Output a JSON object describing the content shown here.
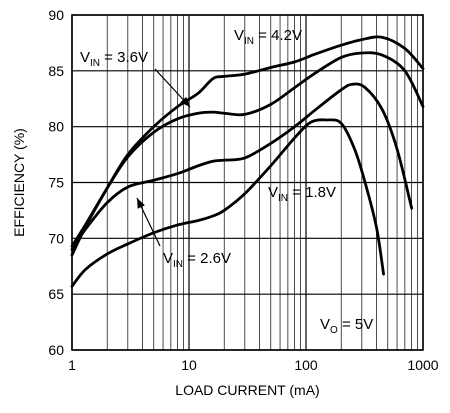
{
  "chart_data": {
    "type": "line",
    "xlabel": "LOAD CURRENT (mA)",
    "ylabel": "EFFICIENCY (%)",
    "x_scale": "log",
    "xlim": [
      1,
      1000
    ],
    "ylim": [
      60,
      90
    ],
    "x_ticks": [
      1,
      10,
      100,
      1000
    ],
    "x_tick_labels": [
      "1",
      "10",
      "100",
      "1000"
    ],
    "y_ticks": [
      60,
      65,
      70,
      75,
      80,
      85,
      90
    ],
    "y_tick_labels": [
      "60",
      "65",
      "70",
      "75",
      "80",
      "85",
      "90"
    ],
    "grid": true,
    "series": [
      {
        "name": "VIN = 4.2V",
        "label_main": "V",
        "label_sub": "IN",
        "label_tail": " = 4.2V",
        "x": [
          1,
          1.3,
          2,
          3,
          5,
          8,
          12,
          16,
          20,
          30,
          50,
          80,
          120,
          200,
          300,
          450,
          700,
          1000
        ],
        "y": [
          68.5,
          71,
          74.5,
          77.5,
          80,
          81.8,
          83,
          84.3,
          84.5,
          84.7,
          85.3,
          85.8,
          86.5,
          87.3,
          87.8,
          88,
          87,
          85.2
        ]
      },
      {
        "name": "VIN = 3.6V",
        "label_main": "V",
        "label_sub": "IN",
        "label_tail": " = 3.6V",
        "x": [
          1,
          1.3,
          2,
          3,
          5,
          8,
          12,
          16,
          20,
          30,
          50,
          80,
          120,
          200,
          300,
          450,
          700,
          1000
        ],
        "y": [
          69.3,
          71.2,
          74.5,
          77.3,
          79.5,
          80.7,
          81.2,
          81.3,
          81.2,
          81.1,
          82,
          83.5,
          84.8,
          86.2,
          86.6,
          86.4,
          85,
          81.8
        ]
      },
      {
        "name": "VIN = 1.8V",
        "label_main": "V",
        "label_sub": "IN",
        "label_tail": " = 1.8V",
        "x": [
          1,
          1.3,
          2,
          3,
          5,
          8,
          12,
          16,
          20,
          30,
          50,
          80,
          120,
          200,
          250,
          320,
          450,
          600,
          800
        ],
        "y": [
          69,
          70.8,
          73.2,
          74.6,
          75.2,
          75.8,
          76.5,
          76.9,
          77,
          77.2,
          78.5,
          80,
          81.5,
          83.3,
          83.8,
          83.5,
          81.5,
          78,
          72.7
        ]
      },
      {
        "name": "VIN = 2.6V",
        "label_main": "V",
        "label_sub": "IN",
        "label_tail": " = 2.6V",
        "x": [
          1,
          1.3,
          2,
          3,
          5,
          8,
          12,
          16,
          20,
          30,
          50,
          80,
          110,
          150,
          200,
          260,
          320,
          400,
          460
        ],
        "y": [
          65.7,
          67.2,
          68.6,
          69.5,
          70.5,
          71.2,
          71.6,
          72,
          72.5,
          74,
          76.5,
          79,
          80.4,
          80.6,
          80.3,
          78,
          75,
          71,
          66.8
        ]
      }
    ],
    "annotations": [
      {
        "main": "V",
        "sub": "O",
        "tail": " = 5V"
      }
    ]
  }
}
